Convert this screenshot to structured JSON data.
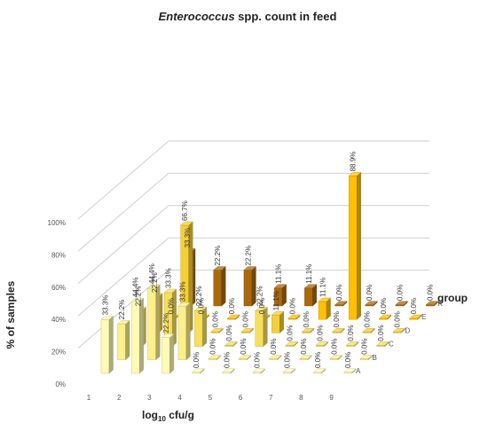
{
  "chart_data": {
    "type": "bar",
    "title_italic": "Enterococcus",
    "title_rest": " spp. count in feed",
    "xlabel": "log",
    "xlabel_sub": "10",
    "xlabel_rest": " cfu/g",
    "ylabel": "% of samples",
    "zlabel": "group",
    "ylim": [
      0,
      100
    ],
    "y_ticks": [
      "0%",
      "20%",
      "40%",
      "60%",
      "80%",
      "100%"
    ],
    "categories": [
      "1",
      "2",
      "3",
      "4",
      "5",
      "6",
      "7",
      "8",
      "9"
    ],
    "series": [
      {
        "name": "A",
        "color": "#fffbb4",
        "values": [
          33.3,
          44.4,
          22.2,
          0.0,
          0.0,
          0.0,
          0.0,
          0.0,
          0.0
        ],
        "labels": [
          "33.3%",
          "44.4%",
          "22.2%",
          "0.0%",
          "0.0%",
          "0.0%",
          "0.0%",
          "0.0%",
          "0.0%"
        ]
      },
      {
        "name": "B",
        "color": "#fdf08a",
        "values": [
          22.2,
          44.4,
          33.3,
          0.0,
          0.0,
          0.0,
          0.0,
          0.0,
          0.0
        ],
        "labels": [
          "22.2%",
          "44.4%",
          "33.3%",
          "0.0%",
          "0.0%",
          "0.0%",
          "0.0%",
          "0.0%",
          "0.0%"
        ]
      },
      {
        "name": "C",
        "color": "#f7df5c",
        "values": [
          22.2,
          33.3,
          22.2,
          0.0,
          22.2,
          0.0,
          0.0,
          0.0,
          0.0
        ],
        "labels": [
          "22.2%",
          "33.3%",
          "22.2%",
          "0.0%",
          "22.2%",
          "0.0%",
          "0.0%",
          "0.0%",
          "0.0%"
        ]
      },
      {
        "name": "D",
        "color": "#f5cf35",
        "values": [
          22.2,
          66.7,
          0.0,
          0.0,
          11.1,
          0.0,
          0.0,
          0.0,
          0.0
        ],
        "labels": [
          "22.2%",
          "66.7%",
          "0.0%",
          "0.0%",
          "11.1%",
          "0.0%",
          "0.0%",
          "0.0%",
          "0.0%"
        ]
      },
      {
        "name": "E",
        "color": "#ffc000",
        "values": [
          0.0,
          0.0,
          0.0,
          0.0,
          0.0,
          11.1,
          88.9,
          0.0,
          0.0
        ],
        "labels": [
          "0.0%",
          "0.0%",
          "0.0%",
          "0.0%",
          "0.0%",
          "11.1%",
          "88.9%",
          "0.0%",
          "0.0%"
        ]
      },
      {
        "name": "K",
        "color": "#a9690c",
        "values": [
          33.3,
          22.2,
          22.2,
          11.1,
          11.1,
          0.0,
          0.0,
          0.0,
          0.0
        ],
        "labels": [
          "33.3%",
          "22.2%",
          "22.2%",
          "11.1%",
          "11.1%",
          "0.0%",
          "0.0%",
          "0.0%",
          "0.0%"
        ]
      }
    ]
  }
}
